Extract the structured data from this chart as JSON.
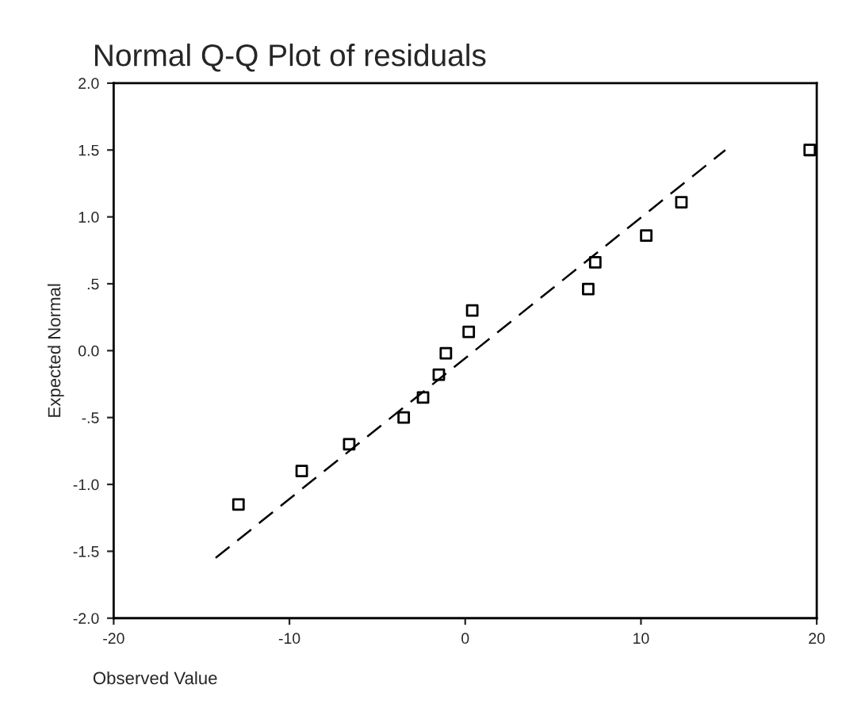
{
  "chart_data": {
    "type": "scatter",
    "title": "Normal Q-Q Plot of residuals",
    "xlabel": "Observed Value",
    "ylabel": "Expected Normal",
    "series": [
      {
        "color": "#000000",
        "marker": "square",
        "x": [
          -12.9,
          -9.3,
          -6.6,
          -3.5,
          -2.4,
          -1.5,
          -1.1,
          0.2,
          0.4,
          7.0,
          7.4,
          10.3,
          12.3,
          19.6
        ],
        "values": [
          -1.15,
          -0.9,
          -0.7,
          -0.5,
          -0.35,
          -0.18,
          -0.02,
          0.14,
          0.3,
          0.46,
          0.66,
          0.86,
          1.11,
          1.5
        ]
      },
      {
        "type": "line",
        "color": "#000000",
        "line_style": "dashed",
        "x": [
          -14.2,
          14.8
        ],
        "values": [
          -1.55,
          1.5
        ]
      }
    ],
    "xlim": [
      -20,
      20
    ],
    "xticks": [
      -20,
      -10,
      0,
      10,
      20
    ],
    "ylim": [
      -2.0,
      2.0
    ],
    "yticks": [
      {
        "value": -2.0,
        "label": "-2.0"
      },
      {
        "value": -1.5,
        "label": "-1.5"
      },
      {
        "value": -1.0,
        "label": "-1.0"
      },
      {
        "value": -0.5,
        "label": "-.5"
      },
      {
        "value": 0.0,
        "label": "0.0"
      },
      {
        "value": 0.5,
        "label": ".5"
      },
      {
        "value": 1.0,
        "label": "1.0"
      },
      {
        "value": 1.5,
        "label": "1.5"
      },
      {
        "value": 2.0,
        "label": "2.0"
      }
    ],
    "grid": false
  }
}
